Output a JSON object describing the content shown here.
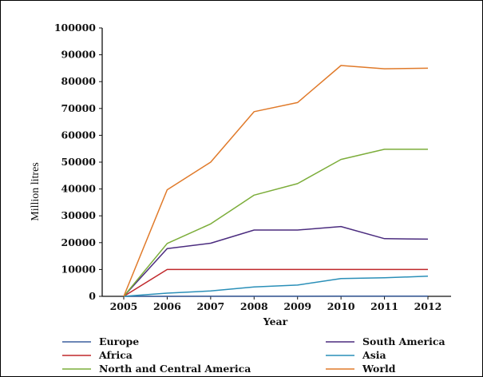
{
  "chart_data": {
    "type": "line",
    "title": "",
    "xlabel": "Year",
    "ylabel": "Million litres",
    "x": [
      2005,
      2006,
      2007,
      2008,
      2009,
      2010,
      2011,
      2012
    ],
    "x_tick_labels": [
      "2005",
      "2006",
      "2007",
      "2008",
      "2009",
      "2010",
      "2011",
      "2012"
    ],
    "ylim": [
      0,
      100000
    ],
    "y_tick_labels": [
      "0",
      "10000",
      "20000",
      "30000",
      "40000",
      "50000",
      "60000",
      "70000",
      "80000",
      "90000",
      "100000"
    ],
    "grid": false,
    "legend_position": "bottom",
    "series": [
      {
        "name": "Europe",
        "color": "#3b5f9e",
        "values": [
          0,
          10,
          20,
          30,
          40,
          50,
          60,
          70
        ]
      },
      {
        "name": "South America",
        "color": "#4b2c7f",
        "values": [
          0,
          17800,
          19800,
          24700,
          24700,
          26000,
          21500,
          21300
        ]
      },
      {
        "name": "Africa",
        "color": "#c0282b",
        "values": [
          0,
          10000,
          10000,
          10000,
          10000,
          10000,
          10000,
          10000
        ]
      },
      {
        "name": "Asia",
        "color": "#2a8fb8",
        "values": [
          0,
          1200,
          2000,
          3500,
          4200,
          6600,
          6900,
          7500
        ]
      },
      {
        "name": "North and Central America",
        "color": "#7cad3a",
        "values": [
          0,
          19700,
          27000,
          37700,
          42000,
          51000,
          54800,
          54800
        ]
      },
      {
        "name": "World",
        "color": "#e07a2a",
        "values": [
          0,
          39700,
          50000,
          68800,
          72200,
          86000,
          84800,
          85000
        ]
      }
    ]
  }
}
